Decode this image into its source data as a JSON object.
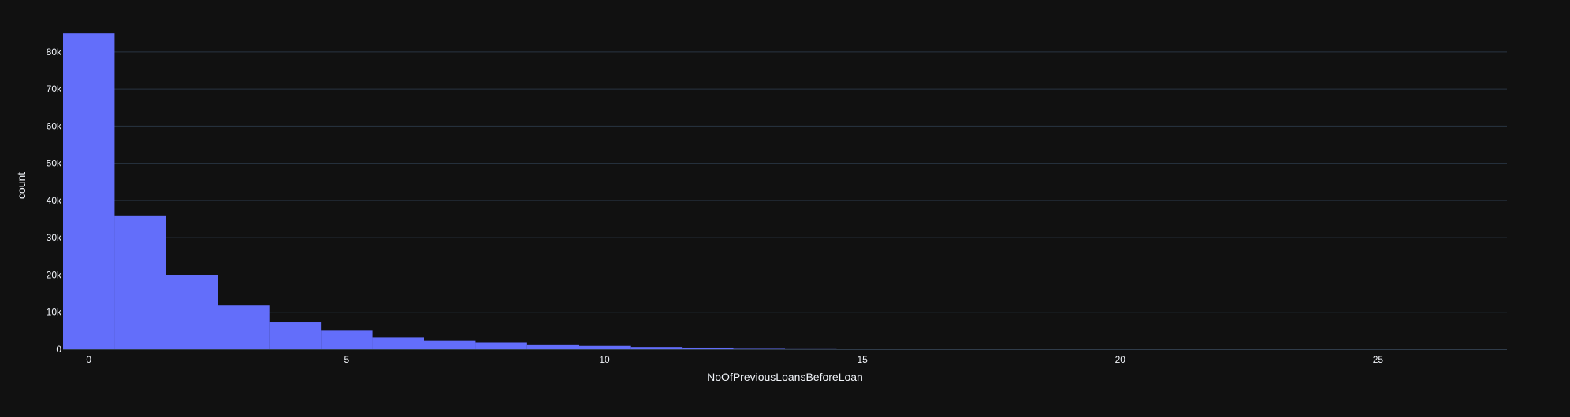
{
  "theme": {
    "background": "#111111",
    "bar_color": "#636efa",
    "grid_color": "#283442",
    "text_color": "#f2f5fa"
  },
  "chart_data": {
    "type": "bar",
    "subtype": "histogram",
    "title": "",
    "xlabel": "NoOfPreviousLoansBeforeLoan",
    "ylabel": "count",
    "categories": [
      0,
      1,
      2,
      3,
      4,
      5,
      6,
      7,
      8,
      9,
      10,
      11,
      12,
      13,
      14,
      15,
      16,
      17,
      18,
      19,
      20,
      21,
      22,
      23,
      24,
      25,
      26,
      27
    ],
    "values": [
      85000,
      36000,
      20000,
      11800,
      7400,
      5000,
      3300,
      2400,
      1800,
      1300,
      900,
      600,
      430,
      320,
      240,
      180,
      130,
      95,
      70,
      50,
      38,
      28,
      20,
      14,
      10,
      7,
      5,
      3
    ],
    "xlim": [
      -0.5,
      27.5
    ],
    "ylim": [
      0,
      88000
    ],
    "x_ticks": [
      0,
      5,
      10,
      15,
      20,
      25
    ],
    "x_tick_labels": [
      "0",
      "5",
      "10",
      "15",
      "20",
      "25"
    ],
    "y_ticks": [
      0,
      10000,
      20000,
      30000,
      40000,
      50000,
      60000,
      70000,
      80000
    ],
    "y_tick_labels": [
      "0",
      "10k",
      "20k",
      "30k",
      "40k",
      "50k",
      "60k",
      "70k",
      "80k"
    ],
    "grid": "horizontal",
    "legend": "none"
  }
}
